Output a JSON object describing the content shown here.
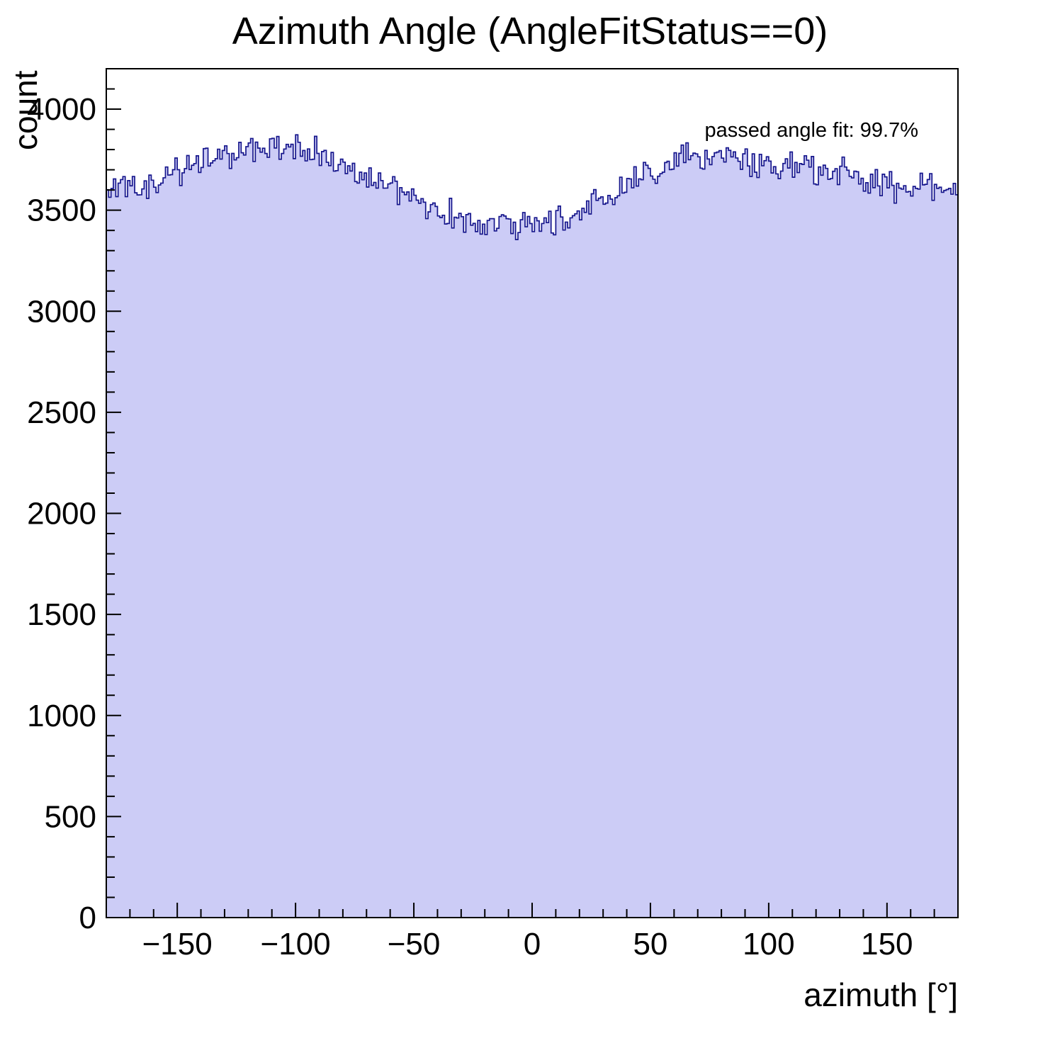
{
  "chart_data": {
    "type": "histogram",
    "title": "Azimuth Angle (AngleFitStatus==0)",
    "xlabel": "azimuth [°]",
    "ylabel": "count",
    "annotation": "passed angle fit: 99.7%",
    "xlim": [
      -180,
      180
    ],
    "ylim": [
      0,
      4200
    ],
    "bin_width": 1,
    "x_major_ticks": [
      -150,
      -100,
      -50,
      0,
      50,
      100,
      150
    ],
    "x_minor_step": 10,
    "y_major_ticks": [
      0,
      500,
      1000,
      1500,
      2000,
      2500,
      3000,
      3500,
      4000
    ],
    "y_minor_step": 100,
    "trend": {
      "x": [
        -180,
        -170,
        -160,
        -150,
        -140,
        -130,
        -120,
        -110,
        -100,
        -90,
        -80,
        -70,
        -60,
        -50,
        -40,
        -30,
        -20,
        -10,
        0,
        10,
        20,
        30,
        40,
        50,
        60,
        70,
        80,
        90,
        100,
        110,
        120,
        130,
        140,
        150,
        160,
        170,
        180
      ],
      "y": [
        3570,
        3610,
        3630,
        3690,
        3730,
        3790,
        3810,
        3830,
        3820,
        3780,
        3720,
        3670,
        3620,
        3560,
        3510,
        3460,
        3430,
        3420,
        3430,
        3450,
        3490,
        3550,
        3620,
        3690,
        3750,
        3770,
        3770,
        3750,
        3730,
        3720,
        3710,
        3690,
        3650,
        3620,
        3610,
        3620,
        3570
      ]
    },
    "noise_amplitude": 95,
    "noise_seed": 1337,
    "fill_color": "#ccccf6",
    "line_color": "#16168c",
    "axis_color": "#000000"
  }
}
